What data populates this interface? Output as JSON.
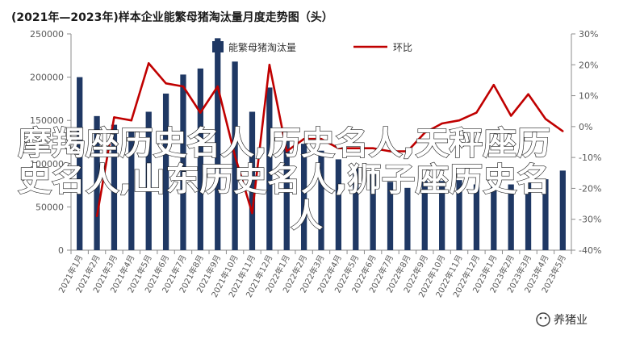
{
  "chart_data": {
    "type": "bar+line",
    "title": "(2021年—2023年)样本企业能繁母猪淘汰量月度走势图（头）",
    "categories": [
      "2021年1月",
      "2021年2月",
      "2021年3月",
      "2021年4月",
      "2021年5月",
      "2021年6月",
      "2021年7月",
      "2021年8月",
      "2021年9月",
      "2021年10月",
      "2021年11月",
      "2021年12月",
      "2022年1月",
      "2022年2月",
      "2022年3月",
      "2022年4月",
      "2022年5月",
      "2022年6月",
      "2022年7月",
      "2022年8月",
      "2022年9月",
      "2022年10月",
      "2022年11月",
      "2022年12月",
      "2023年1月",
      "2023年2月",
      "2023年3月",
      "2023年4月",
      "2023年5月"
    ],
    "x_tick_labels": [
      "2021年1月",
      "2021年2月",
      "2021年3月",
      "2021年4月",
      "2021年5月",
      "2021年6月",
      "2021年7月",
      "2021年8月",
      "2021年9月",
      "2021年10月",
      "2021年11月",
      "2021年12月",
      "2022年1月",
      "2022年2月",
      "2022年3月",
      "2022年4月",
      "2022年5月",
      "2022年6月",
      "2022年7月",
      "2022年8月",
      "2022年9月",
      "2022年10月",
      "2022年11月",
      "2022年12月",
      "2023年1月",
      "2023年2月",
      "2023年3月",
      "2023年4月",
      "2023年5月"
    ],
    "series": [
      {
        "name": "能繁母猪淘汰量",
        "axis": "left",
        "kind": "bar",
        "color": "#1f3864",
        "values": [
          200000,
          155000,
          145000,
          140000,
          160000,
          181000,
          203000,
          210000,
          245000,
          218000,
          160000,
          188000,
          128000,
          123000,
          115000,
          105000,
          95000,
          88000,
          79000,
          72000,
          80000,
          80000,
          81000,
          76000,
          75000,
          76000,
          80000,
          82000,
          92000
        ]
      },
      {
        "name": "环比",
        "axis": "right",
        "kind": "line",
        "color": "#c00000",
        "values": [
          null,
          -0.29,
          0.03,
          0.02,
          0.205,
          0.14,
          0.13,
          0.045,
          0.13,
          -0.095,
          -0.28,
          0.2,
          -0.08,
          -0.04,
          -0.04,
          -0.07,
          -0.07,
          -0.07,
          -0.08,
          -0.08,
          -0.02,
          0.01,
          0.02,
          0.045,
          0.135,
          0.035,
          0.105,
          0.025,
          -0.015
        ]
      }
    ],
    "y_left": {
      "ylim": [
        0,
        250000
      ],
      "ticks": [
        0,
        50000,
        100000,
        150000,
        200000,
        250000
      ],
      "tick_labels": [
        "0",
        "50000",
        "100000",
        "150000",
        "200000",
        "250000"
      ]
    },
    "y_right": {
      "ylim": [
        -0.4,
        0.3
      ],
      "ticks": [
        -0.4,
        -0.3,
        -0.2,
        -0.1,
        0,
        0.1,
        0.2,
        0.3
      ],
      "tick_labels": [
        "-40%",
        "-30%",
        "-20%",
        "-10%",
        "0%",
        "10%",
        "20%",
        "30%"
      ]
    },
    "legend": {
      "position": "top-center",
      "items": [
        "能繁母猪淘汰量",
        "环比"
      ]
    },
    "grid": false
  },
  "overlay": {
    "lines": [
      "摩羯座历史名人,历史名人,天秤座历",
      "史名人,山东历史名人,狮子座历史名",
      "人"
    ]
  },
  "watermark": {
    "text": "养猪业"
  },
  "colors": {
    "bar": "#1f3864",
    "line": "#c00000",
    "axis": "#8c8c8c",
    "text": "#595959",
    "overlay": "#ffffff"
  }
}
